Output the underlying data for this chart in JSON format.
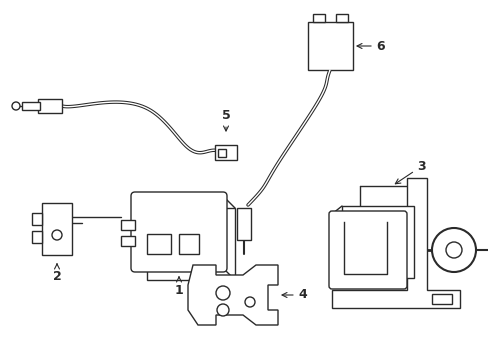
{
  "bg_color": "#ffffff",
  "line_color": "#2a2a2a",
  "line_width": 1.0,
  "figsize": [
    4.89,
    3.6
  ],
  "dpi": 100,
  "xlim": [
    0,
    489
  ],
  "ylim": [
    0,
    360
  ]
}
